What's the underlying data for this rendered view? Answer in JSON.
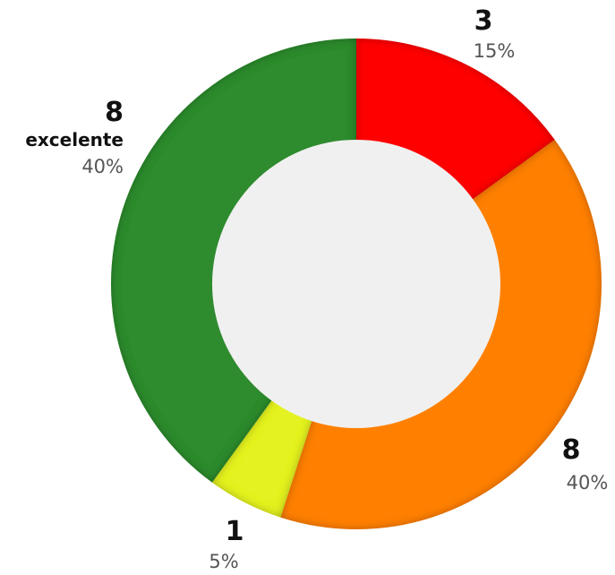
{
  "chart_data": {
    "type": "pie",
    "style": "donut",
    "slices": [
      {
        "count": "3",
        "percent": "15%",
        "value": 15,
        "name": "",
        "color": "#ff0000"
      },
      {
        "count": "8",
        "percent": "40%",
        "value": 40,
        "name": "",
        "color": "#ff8000"
      },
      {
        "count": "1",
        "percent": "5%",
        "value": 5,
        "name": "",
        "color": "#e4f220"
      },
      {
        "count": "8",
        "percent": "40%",
        "value": 40,
        "name": "excelente",
        "color": "#2e8b2e"
      }
    ],
    "hole_color": "#f0f0f0"
  }
}
